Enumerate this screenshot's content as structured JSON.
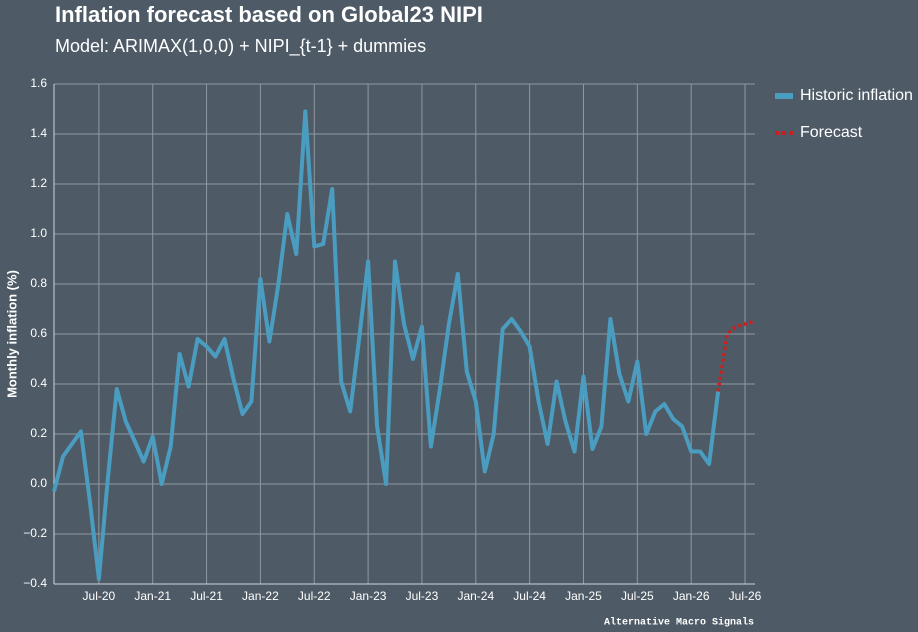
{
  "chart_data": {
    "type": "line",
    "title": "Inflation forecast based on Global23 NIPI",
    "subtitle": "Model: ARIMAX(1,0,0) + NIPI_{t-1} + dummies",
    "y_label": "Monthly inflation (%)",
    "footer": "Alternative Macro Signals",
    "xlim": [
      "2020-02",
      "2026-08"
    ],
    "xticks": [
      {
        "value": "2020-07",
        "label": "Jul-20"
      },
      {
        "value": "2021-01",
        "label": "Jan-21"
      },
      {
        "value": "2021-07",
        "label": "Jul-21"
      },
      {
        "value": "2022-01",
        "label": "Jan-22"
      },
      {
        "value": "2022-07",
        "label": "Jul-22"
      },
      {
        "value": "2023-01",
        "label": "Jan-23"
      },
      {
        "value": "2023-07",
        "label": "Jul-23"
      },
      {
        "value": "2024-01",
        "label": "Jan-24"
      },
      {
        "value": "2024-07",
        "label": "Jul-24"
      },
      {
        "value": "2025-01",
        "label": "Jan-25"
      },
      {
        "value": "2025-07",
        "label": "Jul-25"
      },
      {
        "value": "2026-01",
        "label": "Jan-26"
      },
      {
        "value": "2026-07",
        "label": "Jul-26"
      }
    ],
    "ylim": [
      -0.4,
      1.6
    ],
    "yticks": [
      {
        "value": -0.4,
        "label": "−0.4"
      },
      {
        "value": -0.2,
        "label": "−0.2"
      },
      {
        "value": 0,
        "label": "0.0"
      },
      0.2,
      0.4,
      0.6,
      0.8,
      {
        "value": 1,
        "label": "1.0"
      },
      1.2,
      1.4,
      1.6
    ],
    "grid": true,
    "legend": "outside-right",
    "series": [
      {
        "name": "Historic inflation",
        "color": "#4a9dc0",
        "style": "solid",
        "x": [
          "2020-02",
          "2020-03",
          "2020-04",
          "2020-05",
          "2020-06",
          "2020-07",
          "2020-08",
          "2020-09",
          "2020-10",
          "2020-11",
          "2020-12",
          "2021-01",
          "2021-02",
          "2021-03",
          "2021-04",
          "2021-05",
          "2021-06",
          "2021-07",
          "2021-08",
          "2021-09",
          "2021-10",
          "2021-11",
          "2021-12",
          "2022-01",
          "2022-02",
          "2022-03",
          "2022-04",
          "2022-05",
          "2022-06",
          "2022-07",
          "2022-08",
          "2022-09",
          "2022-10",
          "2022-11",
          "2022-12",
          "2023-01",
          "2023-02",
          "2023-03",
          "2023-04",
          "2023-05",
          "2023-06",
          "2023-07",
          "2023-08",
          "2023-09",
          "2023-10",
          "2023-11",
          "2023-12",
          "2024-01",
          "2024-02",
          "2024-03",
          "2024-04",
          "2024-05",
          "2024-06",
          "2024-07",
          "2024-08",
          "2024-09",
          "2024-10",
          "2024-11",
          "2024-12",
          "2025-01",
          "2025-02",
          "2025-03",
          "2025-04",
          "2025-05",
          "2025-06",
          "2025-07",
          "2025-08",
          "2025-09",
          "2025-10",
          "2025-11",
          "2025-12",
          "2026-01",
          "2026-02",
          "2026-03",
          "2026-04"
        ],
        "values": [
          -0.03,
          0.11,
          0.16,
          0.21,
          -0.07,
          -0.38,
          0.02,
          0.38,
          0.25,
          0.17,
          0.09,
          0.19,
          0.0,
          0.15,
          0.52,
          0.39,
          0.58,
          0.55,
          0.51,
          0.58,
          0.42,
          0.28,
          0.33,
          0.82,
          0.57,
          0.8,
          1.08,
          0.92,
          1.49,
          0.95,
          0.96,
          1.18,
          0.41,
          0.29,
          0.58,
          0.89,
          0.23,
          0.0,
          0.89,
          0.64,
          0.5,
          0.63,
          0.15,
          0.38,
          0.64,
          0.84,
          0.45,
          0.33,
          0.05,
          0.2,
          0.62,
          0.66,
          0.61,
          0.55,
          0.33,
          0.16,
          0.41,
          0.25,
          0.13,
          0.43,
          0.14,
          0.23,
          0.66,
          0.44,
          0.33,
          0.49,
          0.2,
          0.29,
          0.32,
          0.26,
          0.23,
          0.13,
          0.13,
          0.08,
          0.37
        ]
      },
      {
        "name": "Forecast",
        "color": "#cc1f1f",
        "style": "dotted",
        "x": [
          "2026-04",
          "2026-05",
          "2026-06",
          "2026-07",
          "2026-08"
        ],
        "values": [
          0.37,
          0.6,
          0.63,
          0.64,
          0.65
        ]
      }
    ]
  }
}
